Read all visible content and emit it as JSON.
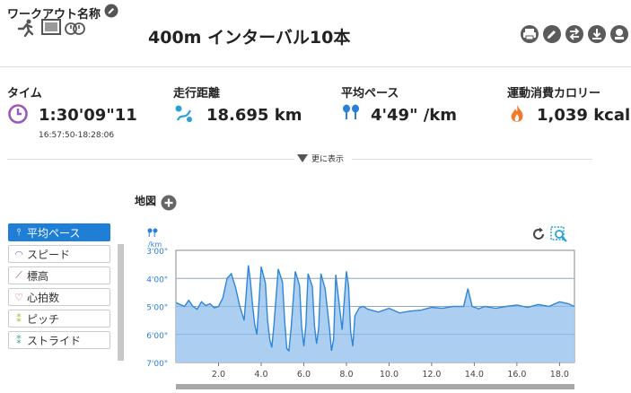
{
  "header": {
    "title_label": "ワークアウト名称",
    "workout_name": "400m インターバル10本",
    "action_buttons": [
      "print-icon",
      "edit-icon",
      "swap-icon",
      "download-icon",
      "share-icon"
    ]
  },
  "stats": [
    {
      "label": "タイム",
      "value": "1:30'09\"11",
      "sub": "16:57:50-18:28:06",
      "icon": "clock-icon",
      "color": "#9b59b6"
    },
    {
      "label": "走行距離",
      "value": "18.695 km",
      "icon": "route-icon",
      "color": "#2aa0d8"
    },
    {
      "label": "平均ペース",
      "value": "4'49\" /km",
      "icon": "pace-icon",
      "color": "#2a7fd8"
    },
    {
      "label": "運動消費カロリー",
      "value": "1,039 kcal",
      "icon": "flame-icon",
      "color": "#f07a2a"
    }
  ],
  "more_label": "更に表示",
  "map_label": "地図",
  "sidebar": {
    "items": [
      {
        "label": "平均ペース",
        "icon": "pace-icon",
        "active": true
      },
      {
        "label": "スピード",
        "icon": "speed-icon",
        "active": false
      },
      {
        "label": "標高",
        "icon": "elevation-icon",
        "active": false
      },
      {
        "label": "心拍数",
        "icon": "heart-icon",
        "active": false
      },
      {
        "label": "ピッチ",
        "icon": "pitch-icon",
        "active": false
      },
      {
        "label": "ストライド",
        "icon": "stride-icon",
        "active": false
      }
    ]
  },
  "chart_data": {
    "type": "area",
    "y_unit": "/km",
    "y_ticks": [
      "3'00\"",
      "4'00\"",
      "5'00\"",
      "6'00\"",
      "7'00\""
    ],
    "y_tick_values": [
      180,
      240,
      300,
      360,
      420
    ],
    "ylim": [
      180,
      420
    ],
    "y_inverted": true,
    "x_ticks": [
      "2.0",
      "4.0",
      "6.0",
      "8.0",
      "10.0",
      "12.0",
      "14.0",
      "16.0",
      "18.0"
    ],
    "xlim": [
      0,
      18.7
    ],
    "grid": true,
    "color": "#2f86d8",
    "fill": "#a8ccf0",
    "x": [
      0.0,
      0.2,
      0.4,
      0.6,
      0.8,
      1.0,
      1.2,
      1.4,
      1.6,
      1.8,
      2.0,
      2.2,
      2.4,
      2.6,
      2.8,
      3.0,
      3.1,
      3.2,
      3.4,
      3.5,
      3.6,
      3.7,
      3.8,
      4.0,
      4.2,
      4.3,
      4.4,
      4.5,
      4.6,
      4.8,
      5.0,
      5.1,
      5.2,
      5.3,
      5.4,
      5.6,
      5.8,
      5.9,
      6.0,
      6.1,
      6.2,
      6.4,
      6.5,
      6.6,
      6.7,
      6.8,
      7.0,
      7.2,
      7.3,
      7.4,
      7.5,
      7.6,
      7.8,
      8.0,
      8.1,
      8.2,
      8.3,
      8.4,
      8.6,
      8.8,
      9.0,
      9.5,
      10.0,
      10.5,
      11.0,
      11.5,
      12.0,
      12.5,
      13.0,
      13.5,
      13.7,
      13.9,
      14.2,
      14.5,
      15.0,
      15.5,
      16.0,
      16.5,
      17.0,
      17.5,
      18.0,
      18.4,
      18.7
    ],
    "y": [
      292,
      296,
      300,
      287,
      300,
      306,
      290,
      298,
      294,
      303,
      300,
      282,
      240,
      230,
      260,
      300,
      315,
      330,
      212,
      248,
      300,
      340,
      360,
      215,
      250,
      330,
      370,
      388,
      340,
      220,
      248,
      330,
      390,
      395,
      350,
      225,
      255,
      345,
      385,
      340,
      230,
      258,
      340,
      380,
      345,
      230,
      262,
      345,
      395,
      370,
      232,
      270,
      350,
      225,
      255,
      355,
      385,
      320,
      303,
      300,
      306,
      312,
      304,
      314,
      310,
      308,
      302,
      304,
      300,
      300,
      262,
      300,
      305,
      300,
      304,
      300,
      297,
      302,
      296,
      300,
      290,
      294,
      300
    ]
  }
}
